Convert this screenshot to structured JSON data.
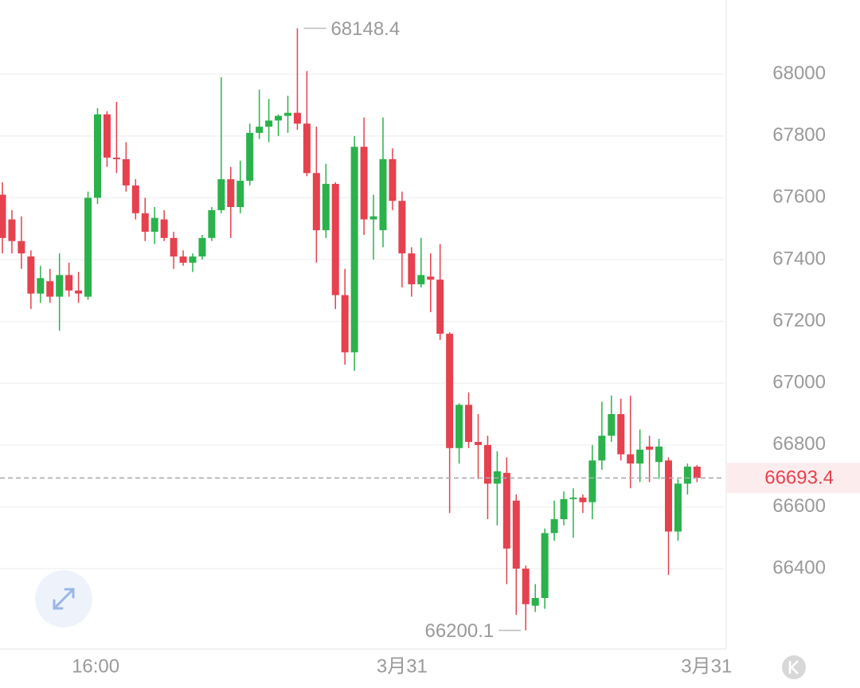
{
  "chart_data": {
    "type": "candlestick",
    "up_color": "#2bb24c",
    "down_color": "#e5414f",
    "grid": true,
    "ylim": [
      66140,
      68240
    ],
    "yticks": [
      66400,
      66600,
      66800,
      67000,
      67200,
      67400,
      67600,
      67800,
      68000
    ],
    "xlim": [
      -0.25,
      75.9
    ],
    "xticks": [
      {
        "value": 9.8,
        "label": "16:00"
      },
      {
        "value": 42,
        "label": "3月31"
      },
      {
        "value": 74,
        "label": "3月31"
      }
    ],
    "open": [
      67610,
      67530,
      67460,
      67410,
      67290,
      67330,
      67280,
      67350,
      67300,
      67280,
      67600,
      67870,
      67730,
      67725,
      67640,
      67550,
      67490,
      67530,
      67470,
      67410,
      67390,
      67410,
      67470,
      67560,
      67660,
      67570,
      67655,
      67810,
      67830,
      67850,
      67865,
      67875,
      67840,
      67680,
      67495,
      67645,
      67285,
      67100,
      67765,
      67530,
      67495,
      67725,
      67590,
      67420,
      67320,
      67345,
      67335,
      67160,
      66790,
      66930,
      66810,
      66800,
      66675,
      66710,
      66620,
      66400,
      66280,
      66305,
      66515,
      66560,
      66625,
      66630,
      66615,
      66750,
      66830,
      66900,
      66770,
      66740,
      66795,
      66745,
      66750,
      66520,
      66675,
      66730
    ],
    "high": [
      67650,
      67560,
      67540,
      67430,
      67380,
      67370,
      67420,
      67390,
      67360,
      67620,
      67890,
      67880,
      67910,
      67780,
      67660,
      67600,
      67570,
      67560,
      67490,
      67430,
      67420,
      67480,
      67570,
      67990,
      67700,
      67720,
      67840,
      67950,
      67920,
      67870,
      67930,
      68148.4,
      68010,
      67830,
      67710,
      67650,
      67370,
      67800,
      67860,
      67610,
      67860,
      67760,
      67620,
      67440,
      67470,
      67420,
      67450,
      67165,
      66935,
      66970,
      66900,
      66830,
      66780,
      66760,
      66640,
      66410,
      66350,
      66530,
      66620,
      66650,
      66660,
      66640,
      66800,
      66940,
      66960,
      66950,
      66960,
      66850,
      66830,
      66820,
      66760,
      66690,
      66740,
      66735
    ],
    "low": [
      67420,
      67420,
      67370,
      67240,
      67260,
      67260,
      67170,
      67280,
      67260,
      67270,
      67580,
      67700,
      67680,
      67620,
      67530,
      67460,
      67450,
      67460,
      67370,
      67380,
      67360,
      67400,
      67460,
      67550,
      67470,
      67550,
      67640,
      67790,
      67780,
      67800,
      67810,
      67820,
      67670,
      67390,
      67470,
      67240,
      67060,
      67040,
      67480,
      67400,
      67440,
      67560,
      67310,
      67280,
      67310,
      67230,
      67140,
      66580,
      66740,
      66790,
      66690,
      66560,
      66540,
      66350,
      66250,
      66200.1,
      66260,
      66270,
      66490,
      66540,
      66500,
      66580,
      66560,
      66720,
      66810,
      66750,
      66660,
      66680,
      66680,
      66690,
      66380,
      66490,
      66640,
      66680
    ],
    "close": [
      67470,
      67460,
      67420,
      67290,
      67340,
      67280,
      67350,
      67300,
      67290,
      67600,
      67870,
      67730,
      67725,
      67640,
      67550,
      67490,
      67535,
      67470,
      67410,
      67390,
      67410,
      67470,
      67560,
      67660,
      67570,
      67655,
      67810,
      67830,
      67850,
      67865,
      67875,
      67840,
      67680,
      67495,
      67645,
      67285,
      67100,
      67765,
      67530,
      67540,
      67725,
      67590,
      67420,
      67320,
      67350,
      67335,
      67160,
      66790,
      66930,
      66810,
      66800,
      66675,
      66715,
      66465,
      66400,
      66285,
      66305,
      66515,
      66560,
      66625,
      66630,
      66615,
      66750,
      66830,
      66900,
      66770,
      66740,
      66785,
      66785,
      66795,
      66520,
      66675,
      66730,
      66693.4
    ]
  }
}
